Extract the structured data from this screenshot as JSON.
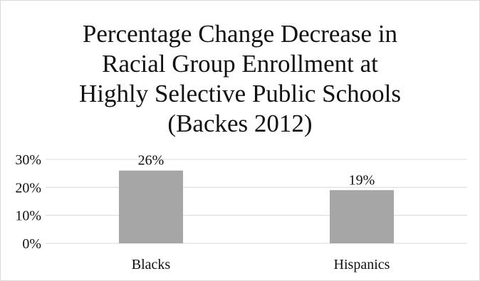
{
  "chart_data": {
    "type": "bar",
    "title_lines": [
      "Percentage Change Decrease in",
      "Racial Group Enrollment at",
      "Highly Selective Public Schools",
      "(Backes 2012)"
    ],
    "categories": [
      "Blacks",
      "Hispanics"
    ],
    "values": [
      26,
      19
    ],
    "data_labels": [
      "26%",
      "19%"
    ],
    "y_ticks": [
      0,
      10,
      20,
      30
    ],
    "y_tick_labels": [
      "0%",
      "10%",
      "20%",
      "30%"
    ],
    "ylim": [
      0,
      30
    ],
    "grid": true,
    "legend": "none",
    "colors": {
      "bar": "#a6a6a6",
      "grid": "#d9d9d9",
      "text": "#111111"
    }
  }
}
